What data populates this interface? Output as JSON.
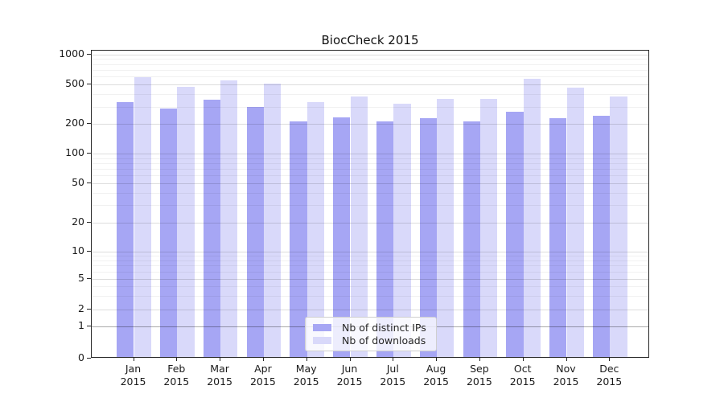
{
  "title": "BiocCheck 2015",
  "legend": {
    "items": [
      {
        "label": "Nb of distinct IPs",
        "series": "ips"
      },
      {
        "label": "Nb of downloads",
        "series": "downloads"
      }
    ]
  },
  "y_axis": {
    "tick_values": [
      0,
      1,
      2,
      5,
      10,
      20,
      50,
      100,
      200,
      500,
      1000
    ],
    "tick_labels": [
      "0",
      "1",
      "2",
      "5",
      "10",
      "20",
      "50",
      "100",
      "200",
      "500",
      "1000"
    ]
  },
  "x_axis": {
    "months": [
      "Jan",
      "Feb",
      "Mar",
      "Apr",
      "May",
      "Jun",
      "Jul",
      "Aug",
      "Sep",
      "Oct",
      "Nov",
      "Dec"
    ],
    "year_line": "2015"
  },
  "chart_data": {
    "type": "bar",
    "title": "BiocCheck 2015",
    "categories": [
      "Jan 2015",
      "Feb 2015",
      "Mar 2015",
      "Apr 2015",
      "May 2015",
      "Jun 2015",
      "Jul 2015",
      "Aug 2015",
      "Sep 2015",
      "Oct 2015",
      "Nov 2015",
      "Dec 2015"
    ],
    "series": [
      {
        "name": "Nb of distinct IPs",
        "values": [
          322,
          279,
          342,
          291,
          208,
          227,
          206,
          224,
          207,
          257,
          222,
          234
        ]
      },
      {
        "name": "Nb of downloads",
        "values": [
          577,
          464,
          532,
          494,
          322,
          369,
          310,
          351,
          347,
          559,
          453,
          367
        ]
      }
    ],
    "yscale": "symlog",
    "yticks": [
      0,
      1,
      2,
      5,
      10,
      20,
      50,
      100,
      200,
      500,
      1000
    ],
    "ylim": [
      0,
      1080
    ],
    "xlabel": "",
    "ylabel": "",
    "grid": true,
    "legend_position": "lower center",
    "colors": {
      "ips": "#a6a6f4",
      "downloads": "#d9d9fa"
    }
  }
}
